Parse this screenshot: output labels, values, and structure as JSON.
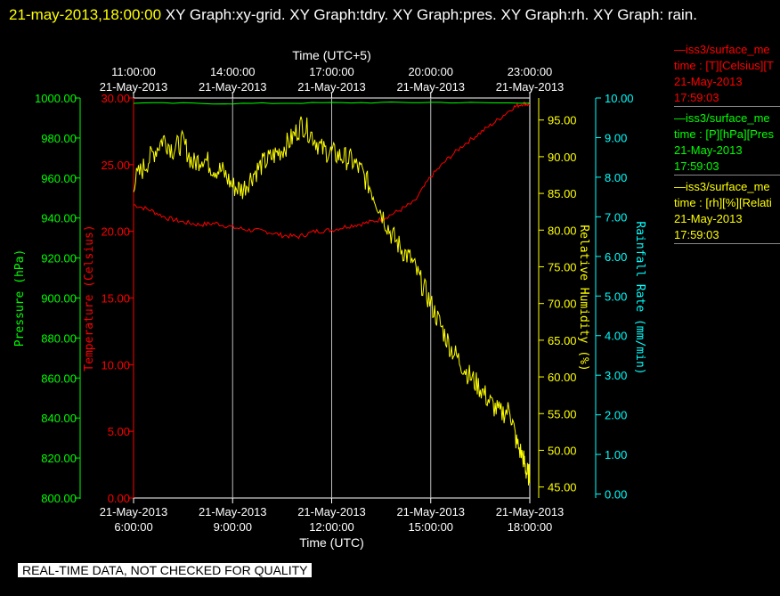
{
  "title": {
    "datetime": "21-may-2013,18:00:00",
    "text": "  XY Graph:xy-grid.  XY Graph:tdry.  XY Graph:pres.  XY Graph:rh.  XY Graph: rain."
  },
  "legend": [
    {
      "line1": "—iss3/surface_me",
      "line2": "time : [T][Celsius][T",
      "line3": "21-May-2013",
      "line4": "17:59:03",
      "color": "#ff0000"
    },
    {
      "line1": "—iss3/surface_me",
      "line2": "time : [P][hPa][Pres",
      "line3": "21-May-2013",
      "line4": "17:59:03",
      "color": "#00ff00"
    },
    {
      "line1": "—iss3/surface_me",
      "line2": "time : [rh][%][Relati",
      "line3": "21-May-2013",
      "line4": "17:59:03",
      "color": "#ffff00"
    }
  ],
  "disclaimer": "REAL-TIME DATA, NOT CHECKED FOR QUALITY",
  "chart_data": {
    "type": "line",
    "xlabel_bottom": "Time (UTC)",
    "xlabel_top": "Time (UTC+5)",
    "x_range_hours_utc": [
      6.0,
      18.0
    ],
    "bottom_ticks": [
      {
        "date": "21-May-2013",
        "time": "6:00:00",
        "h": 6
      },
      {
        "date": "21-May-2013",
        "time": "9:00:00",
        "h": 9
      },
      {
        "date": "21-May-2013",
        "time": "12:00:00",
        "h": 12
      },
      {
        "date": "21-May-2013",
        "time": "15:00:00",
        "h": 15
      },
      {
        "date": "21-May-2013",
        "time": "18:00:00",
        "h": 18
      }
    ],
    "top_ticks": [
      {
        "date": "21-May-2013",
        "time": "11:00:00",
        "h": 6
      },
      {
        "date": "21-May-2013",
        "time": "14:00:00",
        "h": 9
      },
      {
        "date": "21-May-2013",
        "time": "17:00:00",
        "h": 12
      },
      {
        "date": "21-May-2013",
        "time": "20:00:00",
        "h": 15
      },
      {
        "date": "21-May-2013",
        "time": "23:00:00",
        "h": 18
      }
    ],
    "grid": true,
    "axes": [
      {
        "id": "pres",
        "label": "Pressure (hPa)",
        "color": "#00ff00",
        "side": "left",
        "range": [
          800,
          1000
        ],
        "ticks": [
          "800.00",
          "820.00",
          "840.00",
          "860.00",
          "880.00",
          "900.00",
          "920.00",
          "940.00",
          "960.00",
          "980.00",
          "1000.00"
        ]
      },
      {
        "id": "temp",
        "label": "Temperature (Celsius)",
        "color": "#ff0000",
        "side": "left",
        "range": [
          0,
          30
        ],
        "ticks": [
          "0.00",
          "5.00",
          "10.00",
          "15.00",
          "20.00",
          "25.00",
          "30.00"
        ]
      },
      {
        "id": "rh",
        "label": "Relative Humidity (%)",
        "color": "#ffff00",
        "side": "right",
        "range": [
          43.5,
          98
        ],
        "ticks": [
          "45.00",
          "50.00",
          "55.00",
          "60.00",
          "65.00",
          "70.00",
          "75.00",
          "80.00",
          "85.00",
          "90.00",
          "95.00"
        ]
      },
      {
        "id": "rain",
        "label": "Rainfall Rate (mm/min)",
        "color": "#00ffff",
        "side": "right",
        "range": [
          -0.1,
          10
        ],
        "ticks": [
          "0.00",
          "1.00",
          "2.00",
          "3.00",
          "4.00",
          "5.00",
          "6.00",
          "7.00",
          "8.00",
          "9.00",
          "10.00"
        ]
      }
    ],
    "series": [
      {
        "axis": "temp",
        "color": "#ff0000",
        "x": [
          6.0,
          6.5,
          7.0,
          7.5,
          8.0,
          8.5,
          9.0,
          9.5,
          10.0,
          10.5,
          11.0,
          11.5,
          12.0,
          12.5,
          13.0,
          13.5,
          14.0,
          14.5,
          15.0,
          15.5,
          16.0,
          16.5,
          17.0,
          17.5,
          17.8,
          18.0
        ],
        "y": [
          22.0,
          21.6,
          21.0,
          20.7,
          20.5,
          20.6,
          20.3,
          20.1,
          20.0,
          19.7,
          19.6,
          20.0,
          20.1,
          20.4,
          20.6,
          20.9,
          21.5,
          22.2,
          24.1,
          25.4,
          26.5,
          27.4,
          28.3,
          29.3,
          29.6,
          29.5
        ]
      },
      {
        "axis": "pres",
        "color": "#00ff00",
        "x": [
          6.0,
          9.0,
          12.0,
          15.0,
          18.0
        ],
        "y": [
          997.5,
          997.2,
          997.6,
          997.8,
          997.4
        ]
      },
      {
        "axis": "rh",
        "color": "#ffff00",
        "x": [
          6.0,
          6.3,
          6.6,
          6.9,
          7.2,
          7.5,
          7.8,
          8.1,
          8.4,
          8.7,
          9.0,
          9.3,
          9.6,
          9.9,
          10.2,
          10.5,
          10.8,
          11.1,
          11.4,
          11.7,
          12.0,
          12.3,
          12.6,
          12.9,
          13.2,
          13.5,
          13.8,
          14.1,
          14.4,
          14.7,
          15.0,
          15.3,
          15.6,
          15.9,
          16.2,
          16.5,
          16.8,
          17.1,
          17.4,
          17.6,
          17.8,
          17.9,
          18.0
        ],
        "y": [
          86.5,
          88.5,
          90.5,
          92.5,
          91.0,
          92.0,
          89.0,
          90.0,
          88.5,
          88.0,
          86.0,
          85.5,
          87.5,
          89.0,
          90.0,
          91.0,
          92.5,
          94.5,
          93.0,
          91.0,
          90.5,
          90.0,
          89.5,
          88.0,
          85.5,
          82.5,
          79.5,
          77.5,
          76.0,
          73.0,
          70.0,
          67.0,
          64.0,
          62.0,
          60.0,
          58.5,
          56.5,
          55.0,
          55.5,
          51.0,
          49.0,
          47.0,
          46.5
        ]
      }
    ]
  }
}
